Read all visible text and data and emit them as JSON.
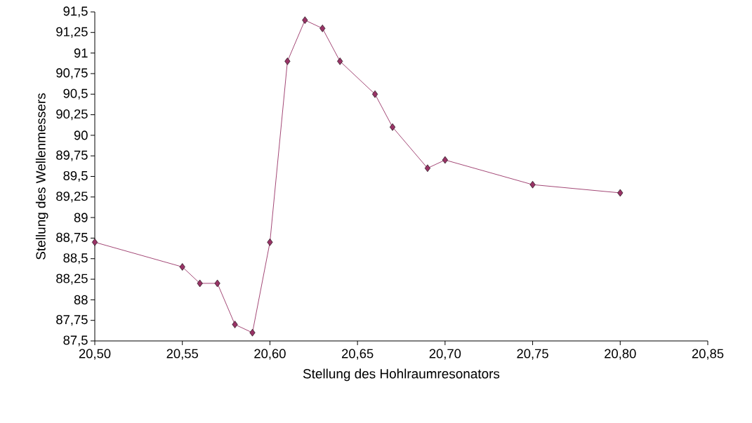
{
  "chart_data": {
    "type": "line",
    "xlabel": "Stellung des Hohlraumresonators",
    "ylabel": "Stellung des Wellenmessers",
    "x": [
      20.5,
      20.55,
      20.56,
      20.57,
      20.58,
      20.59,
      20.6,
      20.61,
      20.62,
      20.63,
      20.64,
      20.66,
      20.67,
      20.69,
      20.7,
      20.75,
      20.8
    ],
    "values": [
      88.7,
      88.4,
      88.2,
      88.2,
      87.7,
      87.6,
      88.7,
      90.9,
      91.4,
      91.3,
      90.9,
      90.5,
      90.1,
      89.6,
      89.7,
      89.4,
      89.3
    ],
    "color": "#993366",
    "marker": "diamond",
    "line_style": "solid",
    "grid": false,
    "xlim": [
      20.5,
      20.85
    ],
    "ylim": [
      87.5,
      91.5
    ],
    "xticks": [
      {
        "value": 20.5,
        "label": "20,50"
      },
      {
        "value": 20.55,
        "label": "20,55"
      },
      {
        "value": 20.6,
        "label": "20,60"
      },
      {
        "value": 20.65,
        "label": "20,65"
      },
      {
        "value": 20.7,
        "label": "20,70"
      },
      {
        "value": 20.75,
        "label": "20,75"
      },
      {
        "value": 20.8,
        "label": "20,80"
      },
      {
        "value": 20.85,
        "label": "20,85"
      }
    ],
    "yticks": [
      {
        "value": 87.5,
        "label": "87,5"
      },
      {
        "value": 87.75,
        "label": "87,75"
      },
      88,
      {
        "value": 88.25,
        "label": "88,25"
      },
      {
        "value": 88.5,
        "label": "88,5"
      },
      {
        "value": 88.75,
        "label": "88,75"
      },
      89,
      {
        "value": 89.25,
        "label": "89,25"
      },
      {
        "value": 89.5,
        "label": "89,5"
      },
      {
        "value": 89.75,
        "label": "89,75"
      },
      90,
      {
        "value": 90.25,
        "label": "90,25"
      },
      {
        "value": 90.5,
        "label": "90,5"
      },
      {
        "value": 90.75,
        "label": "90,75"
      },
      91,
      {
        "value": 91.25,
        "label": "91,25"
      },
      {
        "value": 91.5,
        "label": "91,5"
      }
    ]
  }
}
